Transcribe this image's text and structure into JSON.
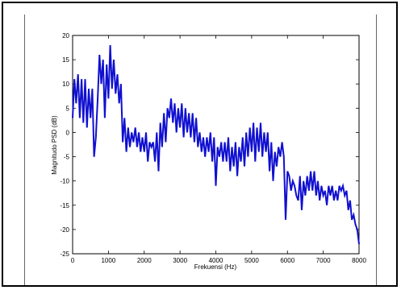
{
  "chart_data": {
    "type": "line",
    "title": "",
    "xlabel": "Frekuensi (Hz)",
    "ylabel": "Magnitudo PSD (dB)",
    "xlim": [
      0,
      8000
    ],
    "ylim": [
      -25,
      20
    ],
    "xticks": [
      0,
      1000,
      2000,
      3000,
      4000,
      5000,
      6000,
      7000,
      8000
    ],
    "yticks": [
      20,
      15,
      10,
      5,
      0,
      -5,
      -10,
      -15,
      -20,
      -25
    ],
    "grid": false,
    "line_color": "#1010d0",
    "series": [
      {
        "x": [
          0,
          50,
          100,
          150,
          200,
          250,
          300,
          350,
          400,
          450,
          500,
          550,
          600,
          650,
          700,
          750,
          800,
          850,
          900,
          950,
          1000,
          1050,
          1100,
          1150,
          1200,
          1250,
          1300,
          1350,
          1400,
          1450,
          1500,
          1550,
          1600,
          1650,
          1700,
          1750,
          1800,
          1850,
          1900,
          1950,
          2000,
          2050,
          2100,
          2150,
          2200,
          2250,
          2300,
          2350,
          2400,
          2450,
          2500,
          2550,
          2600,
          2650,
          2700,
          2750,
          2800,
          2850,
          2900,
          2950,
          3000,
          3050,
          3100,
          3150,
          3200,
          3250,
          3300,
          3350,
          3400,
          3450,
          3500,
          3550,
          3600,
          3650,
          3700,
          3750,
          3800,
          3850,
          3900,
          3950,
          4000,
          4050,
          4100,
          4150,
          4200,
          4250,
          4300,
          4350,
          4400,
          4450,
          4500,
          4550,
          4600,
          4650,
          4700,
          4750,
          4800,
          4850,
          4900,
          4950,
          5000,
          5050,
          5100,
          5150,
          5200,
          5250,
          5300,
          5350,
          5400,
          5450,
          5500,
          5550,
          5600,
          5650,
          5700,
          5750,
          5800,
          5850,
          5900,
          5950,
          6000,
          6050,
          6100,
          6150,
          6200,
          6250,
          6300,
          6350,
          6400,
          6450,
          6500,
          6550,
          6600,
          6650,
          6700,
          6750,
          6800,
          6850,
          6900,
          6950,
          7000,
          7050,
          7100,
          7150,
          7200,
          7250,
          7300,
          7350,
          7400,
          7450,
          7500,
          7550,
          7600,
          7650,
          7700,
          7750,
          7800,
          7850,
          7900,
          7950,
          8000
        ],
        "values": [
          3,
          11,
          6,
          12,
          3,
          11,
          2,
          11,
          1,
          9,
          3,
          9,
          -5,
          -1,
          7,
          16,
          10,
          15,
          3,
          14,
          7,
          18,
          9,
          15,
          8,
          12,
          6,
          10,
          -2,
          3,
          -4,
          1,
          -3,
          0,
          -2,
          1,
          -3,
          0,
          -4,
          -1,
          -4,
          0,
          -6,
          -2,
          -3,
          -2,
          -6,
          0,
          -8,
          2,
          -3,
          4,
          -2,
          5,
          3,
          7,
          2,
          6,
          0,
          5,
          1,
          6,
          -1,
          5,
          0,
          4,
          -1,
          4,
          -2,
          3,
          -3,
          0,
          -4,
          -1,
          -5,
          -1,
          -4,
          0,
          -6,
          -1,
          -11,
          -3,
          -5,
          -2,
          -6,
          -2,
          -6,
          -1,
          -8,
          -3,
          -7,
          -2,
          -9,
          -3,
          -6,
          -1,
          -7,
          0,
          -5,
          1,
          -4,
          2,
          -6,
          1,
          -4,
          2,
          -5,
          0,
          -4,
          0,
          -8,
          -2,
          -10,
          -4,
          -7,
          -3,
          -5,
          -2,
          -5,
          -18,
          -8,
          -9,
          -12,
          -10,
          -11,
          -13,
          -14,
          -9,
          -16,
          -10,
          -13,
          -9,
          -12,
          -8,
          -12,
          -8,
          -13,
          -10,
          -14,
          -11,
          -13,
          -12,
          -15,
          -11,
          -13,
          -11,
          -14,
          -12,
          -14,
          -11,
          -12,
          -11,
          -13,
          -12,
          -16,
          -14,
          -18,
          -17,
          -19,
          -20,
          -23
        ]
      }
    ]
  }
}
